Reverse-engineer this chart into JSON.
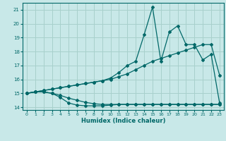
{
  "xlabel": "Humidex (Indice chaleur)",
  "ylabel": "",
  "bg_color": "#c8e8e8",
  "grid_color": "#a8d0cc",
  "line_color": "#006868",
  "xlim": [
    -0.5,
    23.5
  ],
  "ylim": [
    13.8,
    21.5
  ],
  "xticks": [
    0,
    1,
    2,
    3,
    4,
    5,
    6,
    7,
    8,
    9,
    10,
    11,
    12,
    13,
    14,
    15,
    16,
    17,
    18,
    19,
    20,
    21,
    22,
    23
  ],
  "yticks": [
    14,
    15,
    16,
    17,
    18,
    19,
    20,
    21
  ],
  "lines": [
    {
      "x": [
        0,
        1,
        2,
        3,
        4,
        5,
        6,
        7,
        8,
        9,
        10,
        11,
        12,
        13,
        14,
        15,
        16,
        17,
        18,
        19,
        20,
        21,
        22,
        23
      ],
      "y": [
        15.0,
        15.1,
        15.1,
        15.0,
        14.7,
        14.3,
        14.15,
        14.1,
        14.1,
        14.1,
        14.15,
        14.2,
        14.2,
        14.2,
        14.2,
        14.2,
        14.2,
        14.2,
        14.2,
        14.2,
        14.2,
        14.2,
        14.2,
        14.2
      ]
    },
    {
      "x": [
        0,
        1,
        2,
        3,
        4,
        5,
        6,
        7,
        8,
        9,
        10,
        11,
        12,
        13,
        14,
        15,
        16,
        17,
        18,
        19,
        20,
        21,
        22,
        23
      ],
      "y": [
        15.0,
        15.1,
        15.1,
        15.0,
        14.85,
        14.65,
        14.5,
        14.35,
        14.25,
        14.2,
        14.2,
        14.2,
        14.2,
        14.2,
        14.2,
        14.2,
        14.2,
        14.2,
        14.2,
        14.2,
        14.2,
        14.2,
        14.2,
        14.2
      ]
    },
    {
      "x": [
        0,
        1,
        2,
        3,
        4,
        5,
        6,
        7,
        8,
        9,
        10,
        11,
        12,
        13,
        14,
        15,
        16,
        17,
        18,
        19,
        20,
        21,
        22,
        23
      ],
      "y": [
        15.0,
        15.1,
        15.2,
        15.3,
        15.4,
        15.5,
        15.6,
        15.7,
        15.8,
        15.9,
        16.0,
        16.2,
        16.4,
        16.7,
        17.0,
        17.3,
        17.5,
        17.7,
        17.9,
        18.1,
        18.3,
        18.5,
        18.5,
        16.3
      ]
    },
    {
      "x": [
        0,
        1,
        2,
        3,
        4,
        5,
        6,
        7,
        8,
        9,
        10,
        11,
        12,
        13,
        14,
        15,
        16,
        17,
        18,
        19,
        20,
        21,
        22,
        23
      ],
      "y": [
        15.0,
        15.1,
        15.2,
        15.3,
        15.4,
        15.5,
        15.6,
        15.7,
        15.8,
        15.9,
        16.1,
        16.5,
        17.0,
        17.3,
        19.2,
        21.2,
        17.3,
        19.4,
        19.85,
        18.5,
        18.5,
        17.4,
        17.8,
        14.3
      ]
    }
  ]
}
